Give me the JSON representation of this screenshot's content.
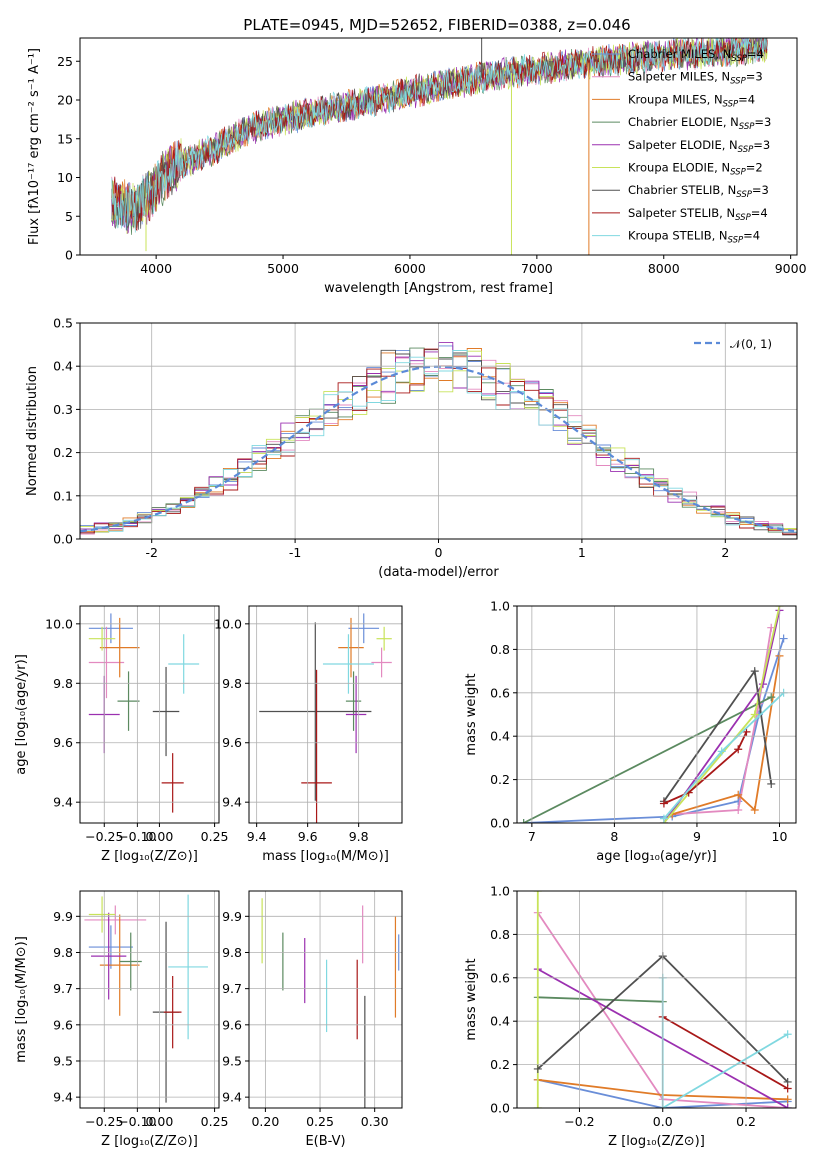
{
  "figure_title": "PLATE=0945, MJD=52652, FIBERID=0388, z=0.046",
  "colors": {
    "Chabrier MILES": "#6a8ed8",
    "Salpeter MILES": "#e38ac0",
    "Kroupa MILES": "#e07b28",
    "Chabrier ELODIE": "#5b8a60",
    "Salpeter ELODIE": "#9b30b0",
    "Kroupa ELODIE": "#c8e35a",
    "Chabrier STELIB": "#505050",
    "Salpeter STELIB": "#a81818",
    "Kroupa STELIB": "#80d8e0"
  },
  "legend": [
    {
      "key": "Chabrier MILES",
      "text": "Chabrier MILES, N",
      "sub": "SSP",
      "suffix": "=4"
    },
    {
      "key": "Salpeter MILES",
      "text": "Salpeter MILES, N",
      "sub": "SSP",
      "suffix": "=3"
    },
    {
      "key": "Kroupa MILES",
      "text": "Kroupa MILES, N",
      "sub": "SSP",
      "suffix": "=4"
    },
    {
      "key": "Chabrier ELODIE",
      "text": "Chabrier ELODIE, N",
      "sub": "SSP",
      "suffix": "=3"
    },
    {
      "key": "Salpeter ELODIE",
      "text": "Salpeter ELODIE, N",
      "sub": "SSP",
      "suffix": "=3"
    },
    {
      "key": "Kroupa ELODIE",
      "text": "Kroupa ELODIE, N",
      "sub": "SSP",
      "suffix": "=2"
    },
    {
      "key": "Chabrier STELIB",
      "text": "Chabrier STELIB, N",
      "sub": "SSP",
      "suffix": "=3"
    },
    {
      "key": "Salpeter STELIB",
      "text": "Salpeter STELIB, N",
      "sub": "SSP",
      "suffix": "=4"
    },
    {
      "key": "Kroupa STELIB",
      "text": "Kroupa STELIB, N",
      "sub": "SSP",
      "suffix": "=4"
    }
  ],
  "chart_data": [
    {
      "id": "spectrum",
      "type": "line",
      "xlabel": "wavelength [Angstrom, rest frame]",
      "ylabel": "Flux [fλ10⁻¹⁷ erg cm⁻² s⁻¹ A⁻¹]",
      "xlim": [
        3400,
        9050
      ],
      "ylim": [
        0,
        28
      ],
      "xticks": [
        4000,
        5000,
        6000,
        7000,
        8000,
        9000
      ],
      "yticks": [
        0,
        5,
        10,
        15,
        20,
        25
      ],
      "continuum": [
        [
          3650,
          7
        ],
        [
          3800,
          6
        ],
        [
          3950,
          7.5
        ],
        [
          4100,
          11
        ],
        [
          4300,
          12.5
        ],
        [
          4500,
          14
        ],
        [
          4700,
          16
        ],
        [
          5000,
          17.5
        ],
        [
          5300,
          18.5
        ],
        [
          5600,
          19.5
        ],
        [
          6000,
          21
        ],
        [
          6300,
          22
        ],
        [
          6600,
          23
        ],
        [
          7000,
          24
        ],
        [
          7400,
          24.8
        ],
        [
          7800,
          25.5
        ],
        [
          8200,
          26
        ],
        [
          8600,
          26.5
        ],
        [
          8800,
          27
        ]
      ],
      "spikes": [
        {
          "key": "Kroupa ELODIE",
          "x": 3920,
          "y": 0.5
        },
        {
          "key": "Kroupa ELODIE",
          "x": 6800,
          "y": 0
        },
        {
          "key": "Kroupa MILES",
          "x": 7410,
          "y": 0
        },
        {
          "key": "Chabrier STELIB",
          "x": 6565,
          "y": 28
        }
      ]
    },
    {
      "id": "residuals",
      "type": "histogram",
      "xlabel": "(data-model)/error",
      "ylabel": "Normed distribution",
      "xlim": [
        -2.5,
        2.5
      ],
      "ylim": [
        0,
        0.5
      ],
      "xticks": [
        -2,
        -1,
        0,
        1,
        2
      ],
      "yticks": [
        0,
        0.1,
        0.2,
        0.3,
        0.4,
        0.5
      ],
      "reference": {
        "label": "𝒩(0, 1)",
        "mean": 0,
        "sigma": 1,
        "color": "#5b8ad8"
      }
    },
    {
      "id": "age_vs_Z",
      "type": "errorbar",
      "xlabel": "Z [log₁₀(Z/Z⊙)]",
      "ylabel": "age  [log₁₀(age/yr)]",
      "xlim": [
        -0.36,
        0.27
      ],
      "ylim": [
        9.33,
        10.06
      ],
      "xticks": [
        -0.25,
        -0.2,
        -0.15,
        -0.1,
        -0.05,
        0,
        0.05,
        0.1,
        0.15,
        0.2,
        0.25
      ],
      "xtick_labels": [
        "−0.25",
        "",
        "",
        "−0.10",
        "",
        "0.00",
        "",
        "",
        "",
        "",
        "0.25"
      ],
      "xtick_show": [
        -0.25,
        -0.1,
        0,
        0.25
      ],
      "xtick_show_labels": [
        "−0.25",
        "−0.10",
        "0.00",
        "0.25"
      ],
      "yticks": [
        9.4,
        9.6,
        9.8,
        10.0
      ],
      "points": [
        {
          "key": "Chabrier MILES",
          "x": -0.22,
          "xerr": 0.1,
          "y": 9.985,
          "yerr": 0.05
        },
        {
          "key": "Salpeter MILES",
          "x": -0.24,
          "xerr": 0.08,
          "y": 9.87,
          "yerr": 0.12
        },
        {
          "key": "Kroupa MILES",
          "x": -0.18,
          "xerr": 0.09,
          "y": 9.92,
          "yerr": 0.1
        },
        {
          "key": "Chabrier ELODIE",
          "x": -0.14,
          "xerr": 0.05,
          "y": 9.74,
          "yerr": 0.1
        },
        {
          "key": "Salpeter ELODIE",
          "x": -0.25,
          "xerr": 0.07,
          "y": 9.695,
          "yerr": 0.13
        },
        {
          "key": "Kroupa ELODIE",
          "x": -0.26,
          "xerr": 0.06,
          "y": 9.95,
          "yerr": 0.04
        },
        {
          "key": "Chabrier STELIB",
          "x": 0.03,
          "xerr": 0.06,
          "y": 9.705,
          "yerr": 0.15
        },
        {
          "key": "Salpeter STELIB",
          "x": 0.06,
          "xerr": 0.05,
          "y": 9.465,
          "yerr": 0.1
        },
        {
          "key": "Kroupa STELIB",
          "x": 0.11,
          "xerr": 0.07,
          "y": 9.865,
          "yerr": 0.1
        }
      ]
    },
    {
      "id": "age_vs_mass",
      "type": "errorbar",
      "xlabel": "mass [log₁₀(M/M⊙)]",
      "ylabel": "",
      "xlim": [
        9.37,
        9.97
      ],
      "ylim": [
        9.33,
        10.06
      ],
      "xtick_show": [
        9.4,
        9.6,
        9.8
      ],
      "xtick_show_labels": [
        "9.4",
        "9.6",
        "9.8"
      ],
      "yticks": [
        9.4,
        9.6,
        9.8,
        10.0
      ],
      "points": [
        {
          "key": "Chabrier MILES",
          "x": 9.82,
          "xerr": 0.06,
          "y": 9.985,
          "yerr": 0.05
        },
        {
          "key": "Salpeter MILES",
          "x": 9.89,
          "xerr": 0.04,
          "y": 9.87,
          "yerr": 0.05
        },
        {
          "key": "Kroupa MILES",
          "x": 9.77,
          "xerr": 0.05,
          "y": 9.92,
          "yerr": 0.1
        },
        {
          "key": "Chabrier ELODIE",
          "x": 9.78,
          "xerr": 0.03,
          "y": 9.74,
          "yerr": 0.1
        },
        {
          "key": "Salpeter ELODIE",
          "x": 9.79,
          "xerr": 0.04,
          "y": 9.695,
          "yerr": 0.13
        },
        {
          "key": "Kroupa ELODIE",
          "x": 9.9,
          "xerr": 0.03,
          "y": 9.95,
          "yerr": 0.04
        },
        {
          "key": "Chabrier STELIB",
          "x": 9.63,
          "xerr": 0.22,
          "y": 9.705,
          "yerr": 0.3
        },
        {
          "key": "Salpeter STELIB",
          "x": 9.635,
          "xerr": 0.06,
          "y": 9.465,
          "yerr": 0.38
        },
        {
          "key": "Kroupa STELIB",
          "x": 9.76,
          "xerr": 0.1,
          "y": 9.865,
          "yerr": 0.1
        }
      ]
    },
    {
      "id": "weight_vs_age",
      "type": "line",
      "xlabel": "age  [log₁₀(age/yr)]",
      "ylabel": "mass weight",
      "xlim": [
        6.82,
        10.2
      ],
      "ylim": [
        0,
        1
      ],
      "xticks": [
        7,
        8,
        9,
        10
      ],
      "yticks": [
        0,
        0.2,
        0.4,
        0.6,
        0.8,
        1.0
      ],
      "series": [
        {
          "key": "Chabrier MILES",
          "x": [
            6.9,
            8.7,
            9.5,
            9.75,
            10.05
          ],
          "y": [
            0,
            0.03,
            0.1,
            0.5,
            0.85
          ]
        },
        {
          "key": "Salpeter MILES",
          "x": [
            8.7,
            9.5,
            9.75,
            9.9
          ],
          "y": [
            0.04,
            0.06,
            0.55,
            0.9
          ]
        },
        {
          "key": "Kroupa MILES",
          "x": [
            8.7,
            9.5,
            9.7,
            10.0
          ],
          "y": [
            0.04,
            0.13,
            0.06,
            0.77
          ]
        },
        {
          "key": "Chabrier ELODIE",
          "x": [
            6.9,
            9.9
          ],
          "y": [
            0,
            0.58
          ]
        },
        {
          "key": "Salpeter ELODIE",
          "x": [
            8.6,
            9.8,
            10.0
          ],
          "y": [
            0.0,
            0.64,
            0.98
          ]
        },
        {
          "key": "Kroupa ELODIE",
          "x": [
            8.6,
            9.7,
            10.0
          ],
          "y": [
            0.0,
            0.5,
            1.0
          ]
        },
        {
          "key": "Chabrier STELIB",
          "x": [
            8.6,
            9.7,
            9.9
          ],
          "y": [
            0.1,
            0.7,
            0.18
          ]
        },
        {
          "key": "Salpeter STELIB",
          "x": [
            8.6,
            8.9,
            9.5,
            9.6
          ],
          "y": [
            0.09,
            0.14,
            0.34,
            0.42
          ]
        },
        {
          "key": "Kroupa STELIB",
          "x": [
            8.6,
            9.3,
            10.05
          ],
          "y": [
            0.02,
            0.33,
            0.6
          ]
        }
      ]
    },
    {
      "id": "mass_vs_Z",
      "type": "errorbar",
      "xlabel": "Z [log₁₀(Z/Z⊙)]",
      "ylabel": "mass [log₁₀(M/M⊙)]",
      "xlim": [
        -0.36,
        0.27
      ],
      "ylim": [
        9.37,
        9.97
      ],
      "xtick_show": [
        -0.25,
        -0.1,
        0,
        0.25
      ],
      "xtick_show_labels": [
        "−0.25",
        "−0.10",
        "0.00",
        "0.25"
      ],
      "yticks": [
        9.4,
        9.5,
        9.6,
        9.7,
        9.8,
        9.9
      ],
      "points": [
        {
          "key": "Chabrier MILES",
          "x": -0.22,
          "xerr": 0.1,
          "y": 9.815,
          "yerr": 0.06
        },
        {
          "key": "Salpeter MILES",
          "x": -0.2,
          "xerr": 0.14,
          "y": 9.89,
          "yerr": 0.04
        },
        {
          "key": "Kroupa MILES",
          "x": -0.18,
          "xerr": 0.09,
          "y": 9.765,
          "yerr": 0.14
        },
        {
          "key": "Chabrier ELODIE",
          "x": -0.13,
          "xerr": 0.05,
          "y": 9.775,
          "yerr": 0.08
        },
        {
          "key": "Salpeter ELODIE",
          "x": -0.23,
          "xerr": 0.08,
          "y": 9.79,
          "yerr": 0.12
        },
        {
          "key": "Kroupa ELODIE",
          "x": -0.26,
          "xerr": 0.06,
          "y": 9.905,
          "yerr": 0.05
        },
        {
          "key": "Chabrier STELIB",
          "x": 0.03,
          "xerr": 0.06,
          "y": 9.635,
          "yerr": 0.25
        },
        {
          "key": "Salpeter STELIB",
          "x": 0.06,
          "xerr": 0.04,
          "y": 9.635,
          "yerr": 0.1
        },
        {
          "key": "Kroupa STELIB",
          "x": 0.13,
          "xerr": 0.09,
          "y": 9.76,
          "yerr": 0.2
        }
      ]
    },
    {
      "id": "mass_vs_EBV",
      "type": "errorbar",
      "xlabel": "E(B-V)",
      "ylabel": "",
      "xlim": [
        0.185,
        0.325
      ],
      "ylim": [
        9.37,
        9.97
      ],
      "xtick_show": [
        0.2,
        0.25,
        0.3
      ],
      "xtick_show_labels": [
        "0.20",
        "0.25",
        "0.30"
      ],
      "yticks": [
        9.4,
        9.5,
        9.6,
        9.7,
        9.8,
        9.9
      ],
      "points": [
        {
          "key": "Kroupa ELODIE",
          "x": 0.197,
          "xerr": 0,
          "y": 9.86,
          "yerr": 0.09
        },
        {
          "key": "Chabrier ELODIE",
          "x": 0.216,
          "xerr": 0,
          "y": 9.775,
          "yerr": 0.08
        },
        {
          "key": "Salpeter ELODIE",
          "x": 0.236,
          "xerr": 0,
          "y": 9.75,
          "yerr": 0.09
        },
        {
          "key": "Kroupa STELIB",
          "x": 0.256,
          "xerr": 0,
          "y": 9.68,
          "yerr": 0.1
        },
        {
          "key": "Salpeter STELIB",
          "x": 0.284,
          "xerr": 0,
          "y": 9.67,
          "yerr": 0.11
        },
        {
          "key": "Chabrier STELIB",
          "x": 0.291,
          "xerr": 0,
          "y": 9.5,
          "yerr": 0.18
        },
        {
          "key": "Salpeter MILES",
          "x": 0.289,
          "xerr": 0,
          "y": 9.85,
          "yerr": 0.08
        },
        {
          "key": "Kroupa MILES",
          "x": 0.319,
          "xerr": 0,
          "y": 9.76,
          "yerr": 0.14
        },
        {
          "key": "Chabrier MILES",
          "x": 0.322,
          "xerr": 0,
          "y": 9.8,
          "yerr": 0.05
        }
      ]
    },
    {
      "id": "weight_vs_Z",
      "type": "line",
      "xlabel": "Z [log₁₀(Z/Z⊙)]",
      "ylabel": "mass weight",
      "xlim": [
        -0.35,
        0.32
      ],
      "ylim": [
        0,
        1
      ],
      "xticks": [
        -0.2,
        0,
        0.2
      ],
      "xtick_labels": [
        "−0.2",
        "0.0",
        "0.2"
      ],
      "yticks": [
        0,
        0.2,
        0.4,
        0.6,
        0.8,
        1.0
      ],
      "series": [
        {
          "key": "Chabrier MILES",
          "x": [
            -0.3,
            0,
            0.3
          ],
          "y": [
            0.13,
            0.0,
            0.03
          ]
        },
        {
          "key": "Salpeter MILES",
          "x": [
            -0.3,
            0,
            0.3
          ],
          "y": [
            0.9,
            0.04,
            0.0
          ]
        },
        {
          "key": "Kroupa MILES",
          "x": [
            -0.3,
            0,
            0.3
          ],
          "y": [
            0.13,
            0.06,
            0.04
          ]
        },
        {
          "key": "Chabrier ELODIE",
          "x": [
            -0.3,
            0
          ],
          "y": [
            0.51,
            0.49
          ]
        },
        {
          "key": "Salpeter ELODIE",
          "x": [
            -0.3,
            0.3
          ],
          "y": [
            0.64,
            0.0
          ]
        },
        {
          "key": "Kroupa ELODIE",
          "x": [
            -0.3,
            -0.3
          ],
          "y": [
            0.0,
            1.0
          ]
        },
        {
          "key": "Chabrier STELIB",
          "x": [
            -0.3,
            0,
            0.3
          ],
          "y": [
            0.18,
            0.7,
            0.12
          ]
        },
        {
          "key": "Salpeter STELIB",
          "x": [
            0,
            0.3
          ],
          "y": [
            0.42,
            0.09
          ]
        },
        {
          "key": "Kroupa STELIB",
          "x": [
            0,
            0,
            0.3
          ],
          "y": [
            0.6,
            0.0,
            0.34
          ]
        }
      ]
    }
  ]
}
